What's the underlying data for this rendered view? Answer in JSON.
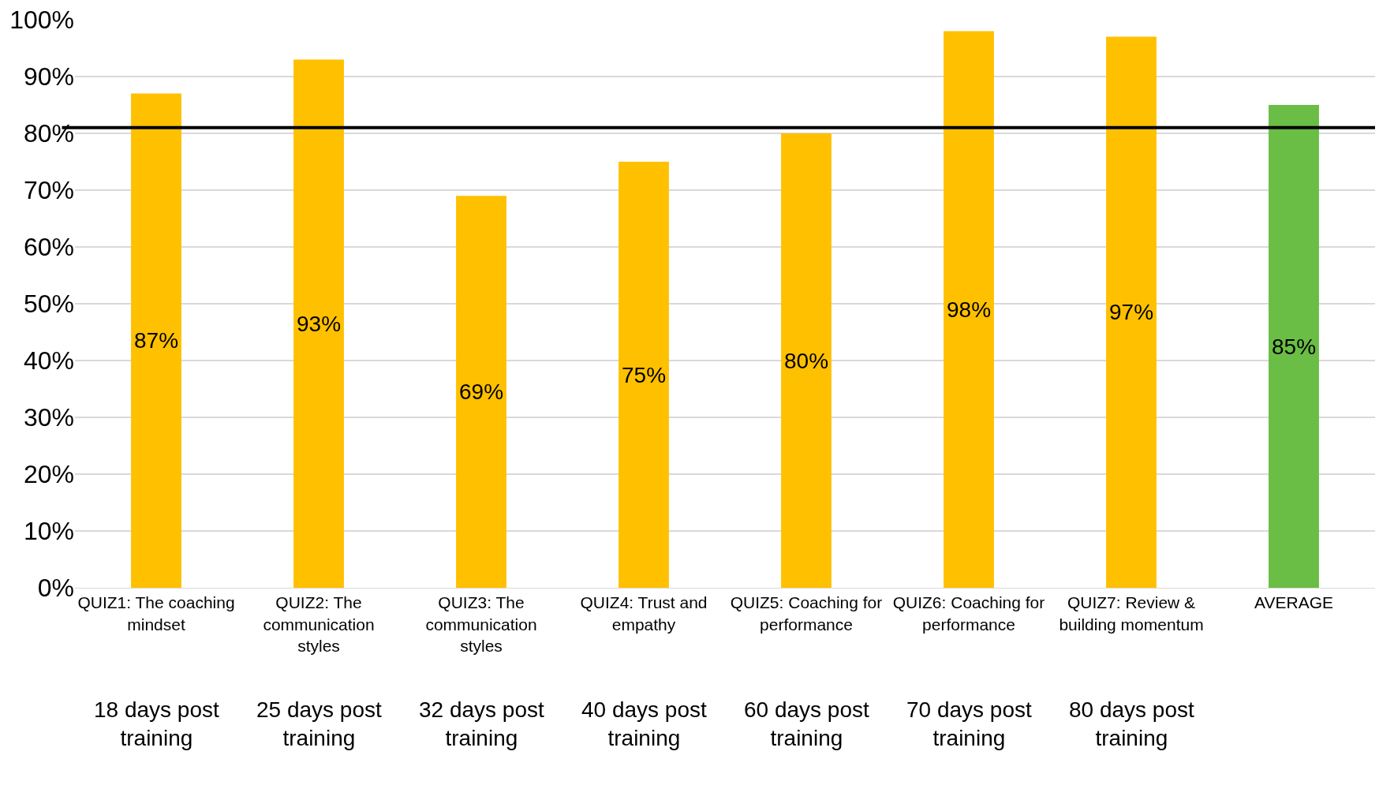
{
  "chart_data": {
    "type": "bar",
    "categories": [
      "QUIZ1: The coaching mindset",
      "QUIZ2: The communication styles",
      "QUIZ3: The communication styles",
      "QUIZ4: Trust and empathy",
      "QUIZ5: Coaching for performance",
      "QUIZ6: Coaching for performance",
      "QUIZ7: Review & building momentum",
      "AVERAGE"
    ],
    "values": [
      87,
      93,
      69,
      75,
      80,
      98,
      97,
      85
    ],
    "colors": [
      "#ffc000",
      "#ffc000",
      "#ffc000",
      "#ffc000",
      "#ffc000",
      "#ffc000",
      "#ffc000",
      "#6abd45"
    ],
    "value_labels": [
      "87%",
      "93%",
      "69%",
      "75%",
      "80%",
      "98%",
      "97%",
      "85%"
    ],
    "ylim": [
      0,
      100
    ],
    "yticks": [
      {
        "value": 0,
        "label": "0%"
      },
      {
        "value": 10,
        "label": "10%"
      },
      {
        "value": 20,
        "label": "20%"
      },
      {
        "value": 30,
        "label": "30%"
      },
      {
        "value": 40,
        "label": "40%"
      },
      {
        "value": 50,
        "label": "50%"
      },
      {
        "value": 60,
        "label": "60%"
      },
      {
        "value": 70,
        "label": "70%"
      },
      {
        "value": 80,
        "label": "80%"
      },
      {
        "value": 90,
        "label": "90%"
      },
      {
        "value": 100,
        "label": "100%"
      }
    ],
    "ref_lines": [
      {
        "axis": "y",
        "value": 81,
        "color": "#000000"
      }
    ],
    "annotations": [
      "18 days post training",
      "25 days post training",
      "32 days post training",
      "40 days post training",
      "60 days post training",
      "70 days post training",
      "80 days post training"
    ],
    "grid": "y"
  }
}
